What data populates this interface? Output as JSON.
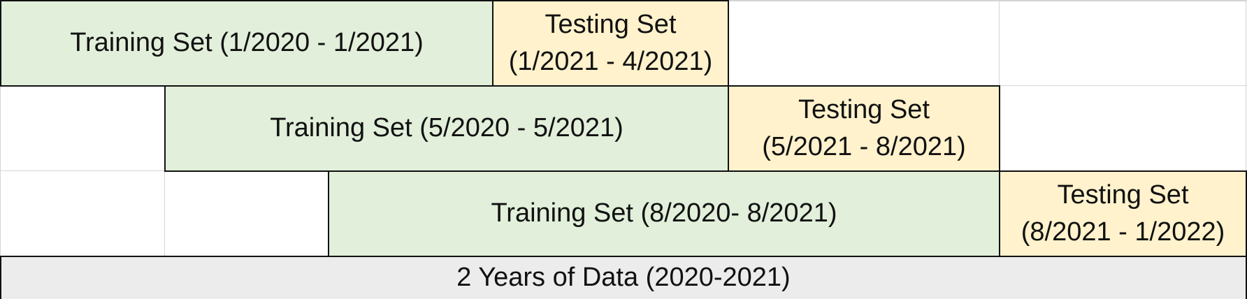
{
  "rows": [
    {
      "training": "Training Set (1/2020 - 1/2021)",
      "testing_line1": "Testing Set",
      "testing_line2": "(1/2021 - 4/2021)"
    },
    {
      "training": "Training Set (5/2020 - 5/2021)",
      "testing_line1": "Testing Set",
      "testing_line2": "(5/2021 - 8/2021)"
    },
    {
      "training": "Training Set (8/2020- 8/2021)",
      "testing_line1": "Testing Set",
      "testing_line2": "(8/2021 - 1/2022)"
    }
  ],
  "footer": "2 Years of Data (2020-2021)",
  "colors": {
    "training_fill": "#e2efda",
    "testing_fill": "#fff2cc",
    "footer_fill": "#ececec",
    "border": "#111111"
  }
}
